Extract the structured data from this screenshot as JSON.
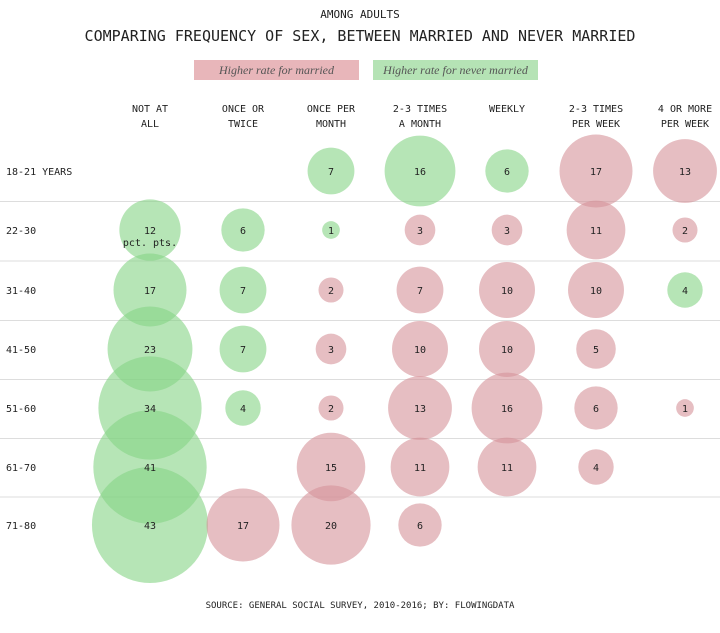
{
  "chart_data": {
    "type": "bubble",
    "subtitle": "AMONG ADULTS",
    "title": "COMPARING FREQUENCY OF SEX, BETWEEN MARRIED AND NEVER MARRIED",
    "legend": [
      {
        "key": "married",
        "label": "Higher rate for married",
        "color": "#d5939a"
      },
      {
        "key": "never",
        "label": "Higher rate for never married",
        "color": "#86d486"
      }
    ],
    "columns": [
      [
        "NOT AT",
        "ALL"
      ],
      [
        "ONCE OR",
        "TWICE"
      ],
      [
        "ONCE PER",
        "MONTH"
      ],
      [
        "2-3 TIMES",
        "A MONTH"
      ],
      [
        "WEEKLY",
        ""
      ],
      [
        "2-3 TIMES",
        "PER WEEK"
      ],
      [
        "4 OR MORE",
        "PER WEEK"
      ]
    ],
    "unit_note": "pct. pts.",
    "rows": [
      {
        "label": "18-21 YEARS",
        "values": [
          null,
          null,
          [
            7,
            "never"
          ],
          [
            16,
            "never"
          ],
          [
            6,
            "never"
          ],
          [
            17,
            "married"
          ],
          [
            13,
            "married"
          ]
        ]
      },
      {
        "label": "22-30",
        "values": [
          [
            12,
            "never"
          ],
          [
            6,
            "never"
          ],
          [
            1,
            "never"
          ],
          [
            3,
            "married"
          ],
          [
            3,
            "married"
          ],
          [
            11,
            "married"
          ],
          [
            2,
            "married"
          ]
        ]
      },
      {
        "label": "31-40",
        "values": [
          [
            17,
            "never"
          ],
          [
            7,
            "never"
          ],
          [
            2,
            "married"
          ],
          [
            7,
            "married"
          ],
          [
            10,
            "married"
          ],
          [
            10,
            "married"
          ],
          [
            4,
            "never"
          ]
        ]
      },
      {
        "label": "41-50",
        "values": [
          [
            23,
            "never"
          ],
          [
            7,
            "never"
          ],
          [
            3,
            "married"
          ],
          [
            10,
            "married"
          ],
          [
            10,
            "married"
          ],
          [
            5,
            "married"
          ],
          null
        ]
      },
      {
        "label": "51-60",
        "values": [
          [
            34,
            "never"
          ],
          [
            4,
            "never"
          ],
          [
            2,
            "married"
          ],
          [
            13,
            "married"
          ],
          [
            16,
            "married"
          ],
          [
            6,
            "married"
          ],
          [
            1,
            "married"
          ]
        ]
      },
      {
        "label": "61-70",
        "values": [
          [
            41,
            "never"
          ],
          null,
          [
            15,
            "married"
          ],
          [
            11,
            "married"
          ],
          [
            11,
            "married"
          ],
          [
            4,
            "married"
          ],
          null
        ]
      },
      {
        "label": "71-80",
        "values": [
          [
            43,
            "never"
          ],
          [
            17,
            "married"
          ],
          [
            20,
            "married"
          ],
          [
            6,
            "married"
          ],
          null,
          null,
          null
        ]
      }
    ],
    "source": "SOURCE: GENERAL SOCIAL SURVEY, 2010-2016; BY: FLOWINGDATA"
  }
}
